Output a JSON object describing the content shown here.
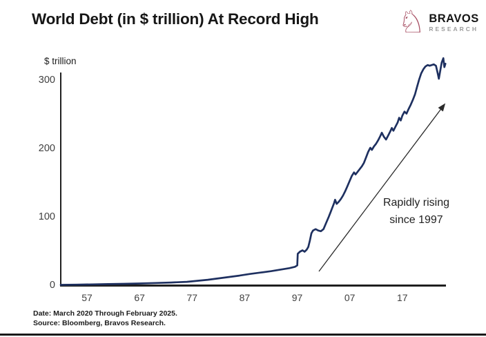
{
  "header": {
    "title": "World Debt (in $ trillion) At Record High"
  },
  "logo": {
    "icon": "knight-bull-icon",
    "icon_glyph": "♘",
    "icon_color": "#a54a5f",
    "brand": "BRAVOS",
    "sub": "RESEARCH"
  },
  "annotation": {
    "line1": "Rapidly rising",
    "line2": "since 1997"
  },
  "footer": {
    "date_line": "Date: March 2020 Through February 2025.",
    "source_line": "Source: Bloomberg, Bravos Research."
  },
  "chart_data": {
    "type": "line",
    "title": "World Debt (in $ trillion) At Record High",
    "xlabel": "",
    "ylabel": "$ trillion",
    "legend": "none",
    "grid": false,
    "line_color": "#1e3060",
    "axis_color": "#1f1f1f",
    "x_range": [
      1952,
      2025.3
    ],
    "y_range": [
      0,
      335
    ],
    "y_ticks": [
      0,
      100,
      200,
      300
    ],
    "x_ticks": [
      {
        "year": 1957,
        "label": "57"
      },
      {
        "year": 1967,
        "label": "67"
      },
      {
        "year": 1977,
        "label": "77"
      },
      {
        "year": 1987,
        "label": "87"
      },
      {
        "year": 1997,
        "label": "97"
      },
      {
        "year": 2007,
        "label": "07"
      },
      {
        "year": 2017,
        "label": "17"
      }
    ],
    "annotation": {
      "text": "Rapidly rising since 1997",
      "arrow": "points up-right along rise from ~1999 to ~2024"
    },
    "series": [
      {
        "name": "World debt ($ trillion)",
        "points": [
          [
            1952,
            1.5
          ],
          [
            1955,
            1.8
          ],
          [
            1958,
            2.2
          ],
          [
            1961,
            2.6
          ],
          [
            1964,
            3.0
          ],
          [
            1967,
            3.5
          ],
          [
            1970,
            4.2
          ],
          [
            1973,
            5.0
          ],
          [
            1976,
            6.0
          ],
          [
            1978,
            7.5
          ],
          [
            1980,
            9.0
          ],
          [
            1982,
            11.0
          ],
          [
            1984,
            13.0
          ],
          [
            1986,
            15.0
          ],
          [
            1988,
            17.5
          ],
          [
            1990,
            19.5
          ],
          [
            1992,
            21.5
          ],
          [
            1994,
            24.0
          ],
          [
            1995.5,
            26.0
          ],
          [
            1996.6,
            28.0
          ],
          [
            1997.0,
            30.0
          ],
          [
            1997.1,
            47.0
          ],
          [
            1997.5,
            50.0
          ],
          [
            1998.0,
            52.0
          ],
          [
            1998.4,
            50.0
          ],
          [
            1998.8,
            53.0
          ],
          [
            1999.1,
            57.0
          ],
          [
            1999.4,
            66.0
          ],
          [
            1999.7,
            77.0
          ],
          [
            2000.0,
            81.0
          ],
          [
            2000.5,
            83.0
          ],
          [
            2001.0,
            81.0
          ],
          [
            2001.5,
            80.0
          ],
          [
            2002.0,
            83.0
          ],
          [
            2002.5,
            92.0
          ],
          [
            2003.0,
            101.0
          ],
          [
            2003.4,
            109.0
          ],
          [
            2003.7,
            115.0
          ],
          [
            2004.0,
            121.0
          ],
          [
            2004.2,
            126.0
          ],
          [
            2004.5,
            120.0
          ],
          [
            2004.9,
            123.0
          ],
          [
            2005.3,
            127.0
          ],
          [
            2005.7,
            132.0
          ],
          [
            2006.1,
            138.0
          ],
          [
            2006.5,
            145.0
          ],
          [
            2007.0,
            154.0
          ],
          [
            2007.4,
            161.0
          ],
          [
            2007.8,
            166.0
          ],
          [
            2008.1,
            163.0
          ],
          [
            2008.5,
            167.0
          ],
          [
            2008.9,
            171.0
          ],
          [
            2009.3,
            175.0
          ],
          [
            2009.7,
            180.0
          ],
          [
            2010.1,
            188.0
          ],
          [
            2010.5,
            196.0
          ],
          [
            2010.9,
            202.0
          ],
          [
            2011.2,
            199.0
          ],
          [
            2011.6,
            204.0
          ],
          [
            2012.0,
            208.0
          ],
          [
            2012.4,
            213.0
          ],
          [
            2012.8,
            219.0
          ],
          [
            2013.1,
            224.0
          ],
          [
            2013.5,
            218.0
          ],
          [
            2013.9,
            214.0
          ],
          [
            2014.3,
            220.0
          ],
          [
            2014.7,
            226.0
          ],
          [
            2015.0,
            231.0
          ],
          [
            2015.3,
            227.0
          ],
          [
            2015.7,
            233.0
          ],
          [
            2016.1,
            239.0
          ],
          [
            2016.4,
            246.0
          ],
          [
            2016.7,
            242.0
          ],
          [
            2017.0,
            249.0
          ],
          [
            2017.4,
            255.0
          ],
          [
            2017.8,
            252.0
          ],
          [
            2018.2,
            259.0
          ],
          [
            2018.6,
            265.0
          ],
          [
            2019.0,
            272.0
          ],
          [
            2019.4,
            280.0
          ],
          [
            2019.8,
            291.0
          ],
          [
            2020.2,
            302.0
          ],
          [
            2020.6,
            311.0
          ],
          [
            2021.0,
            317.0
          ],
          [
            2021.4,
            321.0
          ],
          [
            2021.8,
            323.0
          ],
          [
            2022.2,
            322.0
          ],
          [
            2022.6,
            323.0
          ],
          [
            2023.0,
            324.0
          ],
          [
            2023.4,
            322.0
          ],
          [
            2023.7,
            312.0
          ],
          [
            2023.95,
            303.0
          ],
          [
            2024.2,
            314.0
          ],
          [
            2024.5,
            327.0
          ],
          [
            2024.8,
            333.0
          ],
          [
            2025.0,
            320.0
          ],
          [
            2025.2,
            325.0
          ]
        ]
      }
    ]
  }
}
